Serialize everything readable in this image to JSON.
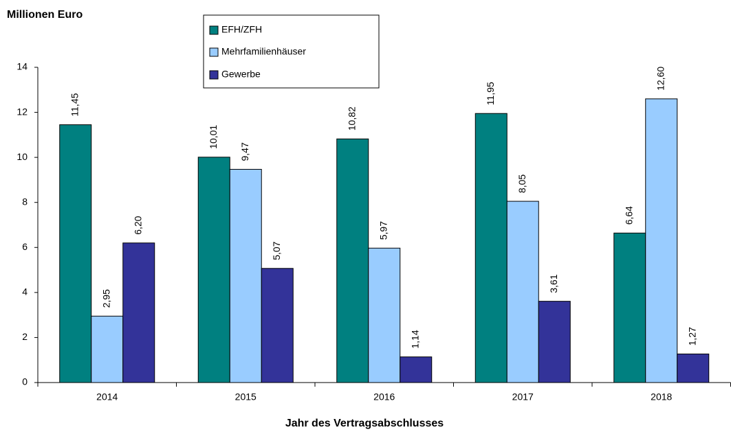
{
  "chart_data": {
    "type": "bar",
    "title": "Millionen Euro",
    "x_label": "Jahr des Vertragsabschlusses",
    "categories": [
      "2014",
      "2015",
      "2016",
      "2017",
      "2018"
    ],
    "series": [
      {
        "name": "EFH/ZFH",
        "color": "#008080",
        "values": [
          11.45,
          10.01,
          10.82,
          11.95,
          6.64
        ],
        "value_labels": [
          "11,45",
          "10,01",
          "10,82",
          "11,95",
          "6,64"
        ]
      },
      {
        "name": "Mehrfamilienhäuser",
        "color": "#99ccff",
        "values": [
          2.95,
          9.47,
          5.97,
          8.05,
          12.6
        ],
        "value_labels": [
          "2,95",
          "9,47",
          "5,97",
          "8,05",
          "12,60"
        ]
      },
      {
        "name": "Gewerbe",
        "color": "#333399",
        "values": [
          6.2,
          5.07,
          1.14,
          3.61,
          1.27
        ],
        "value_labels": [
          "6,20",
          "5,07",
          "1,14",
          "3,61",
          "1,27"
        ]
      }
    ],
    "ylim": [
      0,
      14
    ],
    "yticks": [
      0,
      2,
      4,
      6,
      8,
      10,
      12,
      14
    ],
    "grid": false,
    "legend": "top"
  }
}
